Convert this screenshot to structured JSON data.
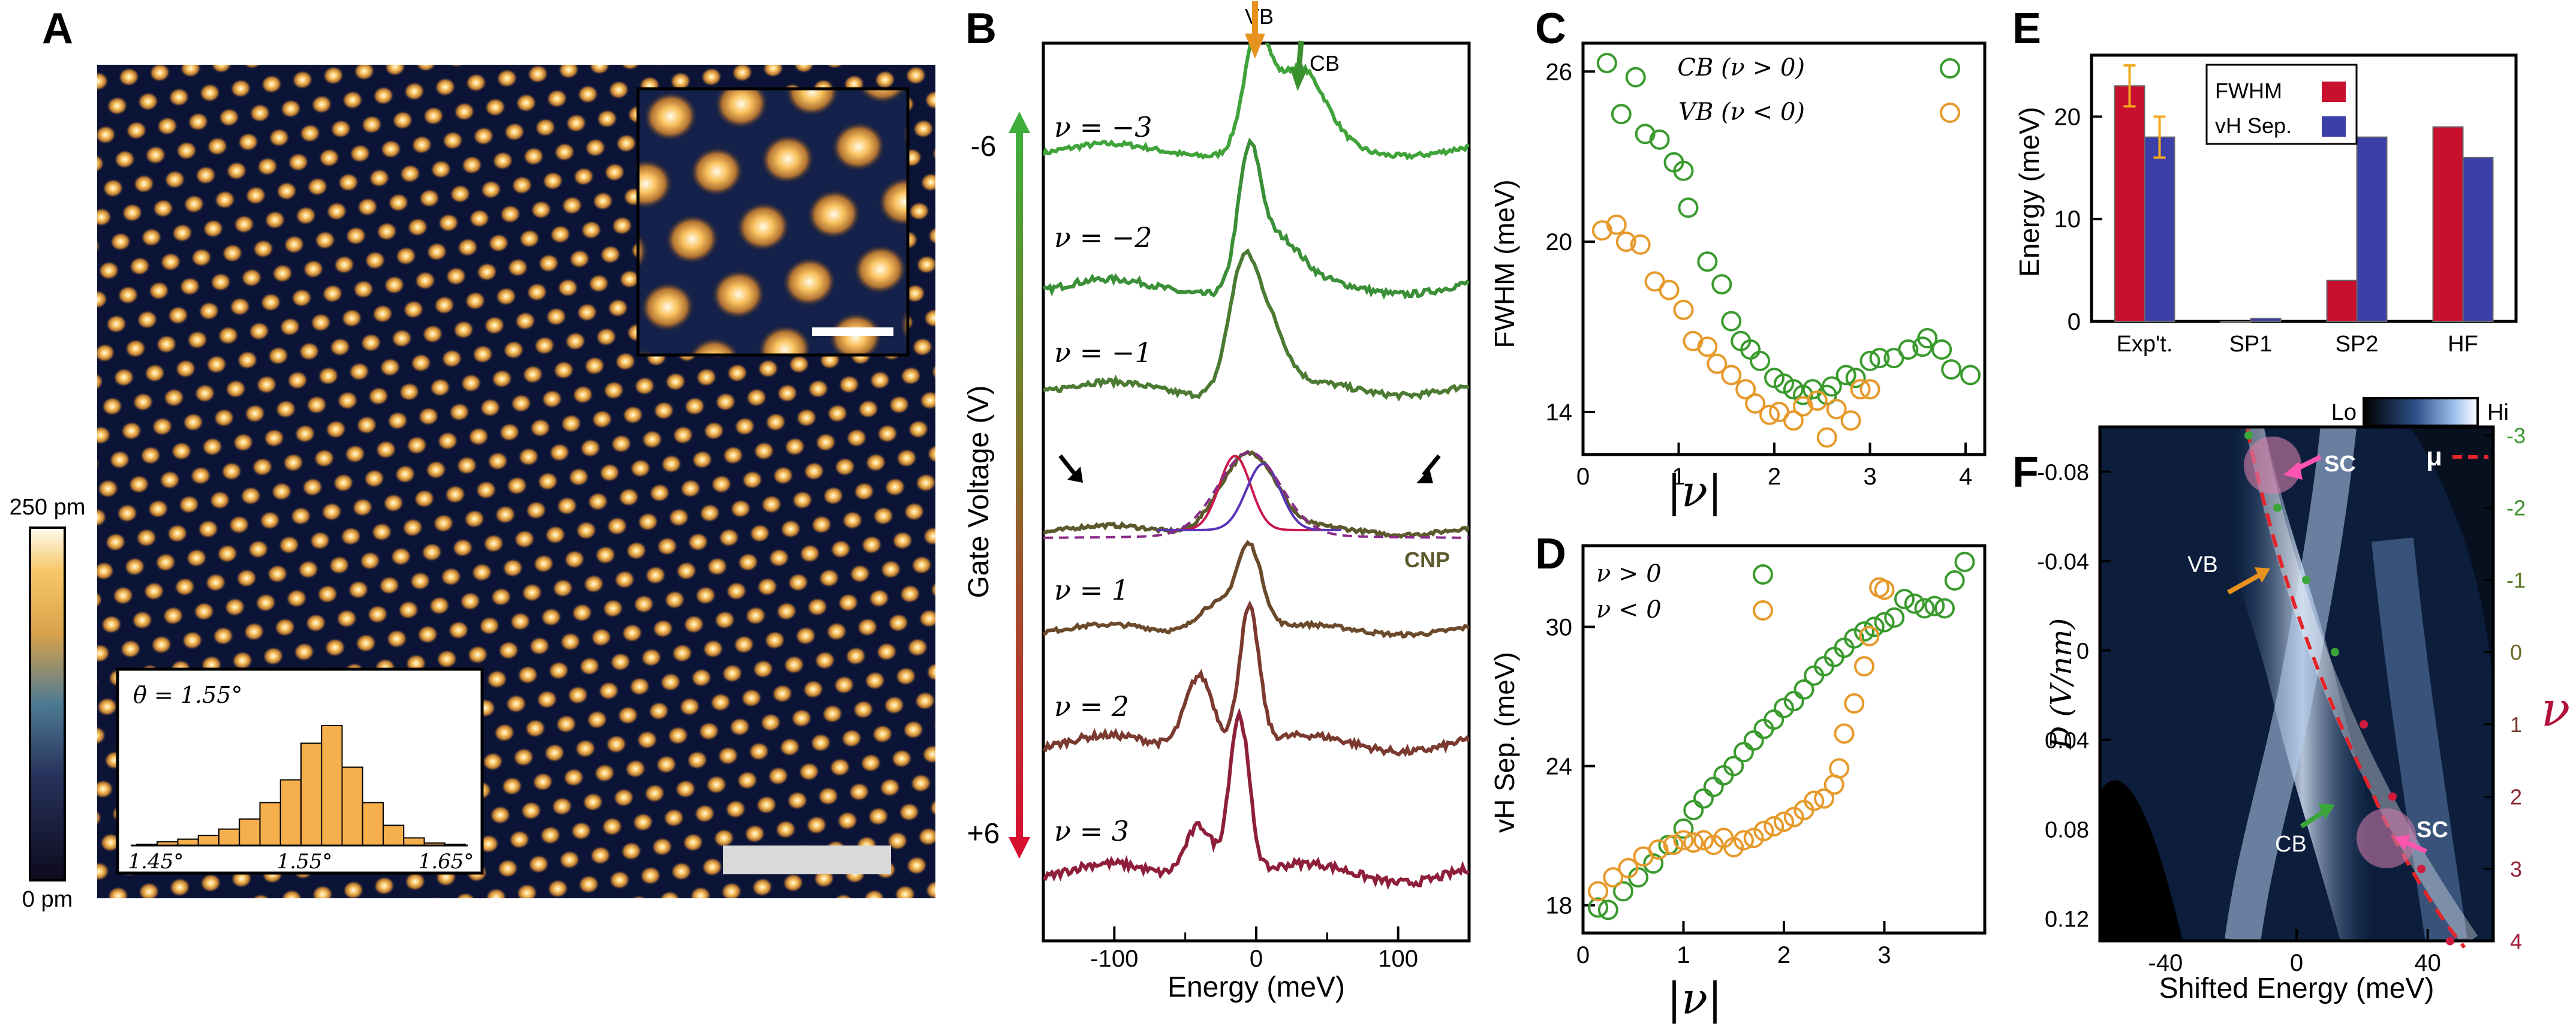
{
  "figure": {
    "panels": {
      "A": {
        "letter": "A",
        "colorbar": {
          "top_label": "250 pm",
          "bottom_label": "0 pm"
        },
        "histogram": {
          "label": "θ̄ = 1.55°",
          "ticks": [
            "1.45°",
            "1.55°",
            "1.65°"
          ],
          "bin_heights": [
            1,
            3,
            5,
            8,
            13,
            21,
            34,
            52,
            81,
            95,
            62,
            34,
            16,
            6,
            2,
            1
          ],
          "bar_color": "#f5b04d"
        },
        "scalebar_color": "#d9d9d9"
      },
      "B": {
        "letter": "B",
        "vb_label": "VB",
        "cb_label": "CB",
        "gate_axis_label": "Gate Voltage (V)",
        "gate_top": "-6",
        "gate_bottom": "+6",
        "cnp_label": "CNP",
        "curve_labels": [
          "ν = −3",
          "ν = −2",
          "ν = −1",
          "ν = 1",
          "ν = 2",
          "ν = 3"
        ]
      },
      "C": {
        "letter": "C"
      },
      "D": {
        "letter": "D"
      },
      "E": {
        "letter": "E"
      },
      "F": {
        "letter": "F",
        "colorbar_lo": "Lo",
        "colorbar_hi": "Hi",
        "mu_label": "μ",
        "sc_label": "SC",
        "vb_label": "VB",
        "cb_label": "CB",
        "nu_symbol": "ν",
        "right_ticks": [
          "-3",
          "-2",
          "-1",
          "0",
          "1",
          "2",
          "3",
          "4"
        ]
      }
    }
  },
  "chart_data": [
    {
      "id": "B",
      "type": "line",
      "title": "",
      "xlabel": "Energy (meV)",
      "ylabel": "",
      "xlim": [
        -150,
        150
      ],
      "xticks": [
        "-100",
        "0",
        "100"
      ],
      "series": [
        {
          "name": "ν = −3",
          "color": "#3fa33a",
          "peaks": [
            [
              0,
              1.0,
              9
            ],
            [
              30,
              0.75,
              18
            ]
          ]
        },
        {
          "name": "ν = −2",
          "color": "#3a8f37",
          "peaks": [
            [
              -5,
              1.0,
              8
            ],
            [
              15,
              0.35,
              15
            ]
          ]
        },
        {
          "name": "ν = −1",
          "color": "#4b7a32",
          "peaks": [
            [
              -10,
              1.0,
              10
            ],
            [
              8,
              0.55,
              12
            ]
          ]
        },
        {
          "name": "CNP",
          "color": "#5c5a2d",
          "peaks": [
            [
              -15,
              0.7,
              16
            ],
            [
              5,
              0.55,
              14
            ]
          ]
        },
        {
          "name": "ν = 1",
          "color": "#6b4a2b",
          "peaks": [
            [
              -5,
              1.0,
              9
            ],
            [
              -30,
              0.35,
              12
            ]
          ]
        },
        {
          "name": "ν = 2",
          "color": "#7a3a2f",
          "peaks": [
            [
              -5,
              1.0,
              7
            ],
            [
              -40,
              0.55,
              10
            ]
          ]
        },
        {
          "name": "ν = 3",
          "color": "#8e1f3a",
          "peaks": [
            [
              -12,
              1.0,
              7
            ],
            [
              -40,
              0.35,
              10
            ]
          ]
        }
      ]
    },
    {
      "id": "C",
      "type": "scatter",
      "xlabel": "|ν|",
      "ylabel": "FWHM (meV)",
      "xlim": [
        0,
        4.2
      ],
      "ylim": [
        12.5,
        27
      ],
      "xticks": [
        "0",
        "1",
        "2",
        "3",
        "4"
      ],
      "yticks": [
        "14",
        "20",
        "26"
      ],
      "legend": [
        "CB (ν > 0)",
        "VB (ν < 0)"
      ],
      "series": [
        {
          "name": "CB (ν > 0)",
          "color": "#3a9a2e",
          "x": [
            0.25,
            0.4,
            0.55,
            0.65,
            0.8,
            0.95,
            1.05,
            1.1,
            1.3,
            1.45,
            1.55,
            1.65,
            1.75,
            1.85,
            2.0,
            2.1,
            2.2,
            2.3,
            2.4,
            2.55,
            2.6,
            2.75,
            2.85,
            3.0,
            3.1,
            3.25,
            3.4,
            3.55,
            3.6,
            3.75,
            3.85,
            4.05
          ],
          "y": [
            26.3,
            24.5,
            25.8,
            23.8,
            23.6,
            22.8,
            22.5,
            21.2,
            19.3,
            18.5,
            17.2,
            16.5,
            16.2,
            15.8,
            15.2,
            15.0,
            14.8,
            14.6,
            14.8,
            14.6,
            14.9,
            15.3,
            15.2,
            15.8,
            15.9,
            15.9,
            16.2,
            16.3,
            16.6,
            16.2,
            15.5,
            15.3
          ]
        },
        {
          "name": "VB (ν < 0)",
          "color": "#e69a2b",
          "x": [
            0.2,
            0.35,
            0.45,
            0.6,
            0.75,
            0.9,
            1.05,
            1.15,
            1.3,
            1.4,
            1.55,
            1.7,
            1.8,
            1.95,
            2.05,
            2.2,
            2.3,
            2.45,
            2.55,
            2.65,
            2.8,
            2.9,
            3.0
          ],
          "y": [
            20.4,
            20.6,
            20.0,
            19.9,
            18.6,
            18.3,
            17.6,
            16.5,
            16.3,
            15.7,
            15.3,
            14.8,
            14.3,
            13.9,
            14.0,
            13.7,
            14.2,
            14.4,
            13.1,
            14.1,
            13.7,
            14.8,
            14.8
          ]
        }
      ]
    },
    {
      "id": "D",
      "type": "scatter",
      "xlabel": "|ν|",
      "ylabel": "vH Sep. (meV)",
      "xlim": [
        0,
        4
      ],
      "ylim": [
        16.8,
        33.5
      ],
      "xticks": [
        "0",
        "1",
        "2",
        "3"
      ],
      "yticks": [
        "18",
        "24",
        "30"
      ],
      "legend": [
        "ν > 0",
        "ν < 0"
      ],
      "series": [
        {
          "name": "ν > 0",
          "color": "#3a9a2e",
          "x": [
            0.15,
            0.25,
            0.4,
            0.55,
            0.7,
            0.85,
            1.0,
            1.1,
            1.2,
            1.3,
            1.4,
            1.5,
            1.6,
            1.7,
            1.8,
            1.9,
            2.0,
            2.1,
            2.2,
            2.3,
            2.4,
            2.5,
            2.6,
            2.7,
            2.8,
            2.9,
            3.0,
            3.1,
            3.2,
            3.3,
            3.4,
            3.5,
            3.6,
            3.7,
            3.8
          ],
          "y": [
            17.9,
            17.8,
            18.6,
            19.2,
            19.8,
            20.6,
            21.3,
            22.1,
            22.6,
            23.1,
            23.6,
            24.0,
            24.6,
            25.1,
            25.6,
            26.0,
            26.5,
            26.8,
            27.3,
            27.9,
            28.3,
            28.7,
            29.1,
            29.5,
            29.8,
            30.0,
            30.2,
            30.4,
            31.2,
            31.0,
            30.8,
            30.9,
            30.8,
            32.0,
            32.8
          ]
        },
        {
          "name": "ν < 0",
          "color": "#e69a2b",
          "x": [
            0.15,
            0.3,
            0.45,
            0.6,
            0.75,
            0.9,
            1.0,
            1.1,
            1.2,
            1.3,
            1.4,
            1.5,
            1.6,
            1.7,
            1.8,
            1.9,
            2.0,
            2.1,
            2.2,
            2.3,
            2.4,
            2.5,
            2.55,
            2.6,
            2.7,
            2.8,
            2.85,
            2.95,
            3.0
          ],
          "y": [
            18.6,
            19.2,
            19.6,
            20.1,
            20.4,
            20.6,
            20.8,
            20.7,
            20.8,
            20.6,
            20.9,
            20.5,
            20.8,
            20.9,
            21.2,
            21.4,
            21.6,
            21.8,
            22.1,
            22.5,
            22.6,
            23.2,
            23.9,
            25.4,
            26.7,
            28.3,
            29.6,
            31.7,
            31.6
          ]
        }
      ]
    },
    {
      "id": "E",
      "type": "bar",
      "xlabel": "",
      "ylabel": "Energy (meV)",
      "ylim": [
        0,
        26
      ],
      "yticks": [
        "0",
        "10",
        "20"
      ],
      "categories": [
        "Exp't.",
        "SP1",
        "SP2",
        "HF"
      ],
      "legend": [
        "FWHM",
        "vH Sep."
      ],
      "series": [
        {
          "name": "FWHM",
          "color": "#c8102e",
          "values": [
            23,
            0,
            4,
            19
          ],
          "errors": [
            2,
            0,
            0,
            0
          ]
        },
        {
          "name": "vH Sep.",
          "color": "#3b3fa8",
          "values": [
            18,
            0.3,
            18,
            16
          ],
          "errors": [
            2,
            0,
            0,
            0
          ]
        }
      ]
    },
    {
      "id": "F",
      "type": "heatmap",
      "xlabel": "Shifted Energy (meV)",
      "ylabel": "D (V/nm)",
      "xlim": [
        -60,
        60
      ],
      "ylim": [
        -0.1,
        0.13
      ],
      "xticks": [
        "-40",
        "0",
        "40"
      ],
      "yticks": [
        "-0.08",
        "-0.04",
        "0",
        "0.04",
        "0.08",
        "0.12"
      ],
      "legend": [
        "μ"
      ]
    }
  ]
}
